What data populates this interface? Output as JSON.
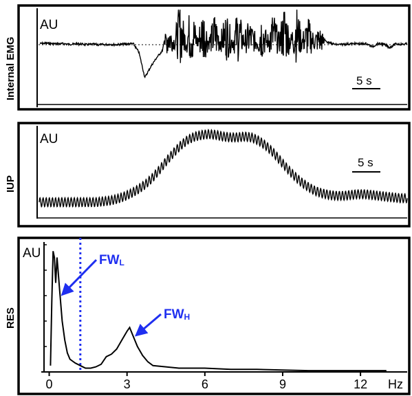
{
  "chart_data": [
    {
      "type": "line",
      "ylabel": "Internal EMG",
      "unit_label": "AU",
      "scale_bar": "5 s",
      "baseline": "dotted",
      "series": [
        {
          "values": [
            0.05,
            0.06,
            0.05,
            0.04,
            0.05,
            0.03,
            0.04,
            0.04,
            0.02,
            0.03,
            0.02,
            0.02,
            0.03,
            0.02,
            0.03,
            0.04,
            0.05,
            -0.2,
            -0.9,
            -0.6,
            -0.35,
            -0.15,
            0.6,
            0.15,
            0.95,
            0.25,
            0.95,
            0.2,
            0.85,
            0.2,
            0.7,
            0.25,
            0.75,
            0.2,
            0.8,
            0.25,
            0.55,
            0.25,
            0.75,
            0.2,
            0.75,
            0.25,
            0.95,
            0.2,
            0.85,
            0.25,
            0.6,
            0.25,
            0.4,
            0.12,
            0.05,
            0.02,
            0.03,
            0.04,
            0.05,
            0.04,
            0.05,
            -0.04,
            0.05,
            0.03,
            -0.06,
            0.04,
            0.03,
            0.04
          ]
        }
      ]
    },
    {
      "type": "line",
      "ylabel": "IUP",
      "unit_label": "AU",
      "scale_bar": "5 s",
      "series": [
        {
          "values": [
            0.1,
            0.1,
            0.1,
            0.1,
            0.1,
            0.1,
            0.1,
            0.1,
            0.1,
            0.11,
            0.12,
            0.14,
            0.17,
            0.21,
            0.26,
            0.32,
            0.4,
            0.5,
            0.61,
            0.71,
            0.8,
            0.87,
            0.91,
            0.93,
            0.94,
            0.93,
            0.91,
            0.9,
            0.9,
            0.91,
            0.9,
            0.86,
            0.8,
            0.72,
            0.62,
            0.52,
            0.43,
            0.35,
            0.29,
            0.24,
            0.21,
            0.19,
            0.18,
            0.18,
            0.19,
            0.2,
            0.2,
            0.19,
            0.18,
            0.17,
            0.16,
            0.15,
            0.15
          ]
        }
      ]
    },
    {
      "type": "line",
      "ylabel": "RES",
      "unit_label": "AU",
      "x_unit": "Hz",
      "xticks": [
        "0",
        "3",
        "6",
        "9",
        "12"
      ],
      "xlim": [
        -0.2,
        13.8
      ],
      "ylim": [
        0,
        1
      ],
      "x": [
        0.05,
        0.1,
        0.15,
        0.2,
        0.25,
        0.3,
        0.35,
        0.4,
        0.5,
        0.6,
        0.7,
        0.8,
        1.0,
        1.2,
        1.4,
        1.6,
        1.8,
        2.0,
        2.2,
        2.4,
        2.6,
        2.8,
        3.0,
        3.1,
        3.2,
        3.4,
        3.6,
        3.8,
        4.0,
        4.5,
        5,
        6,
        7,
        8,
        9,
        10,
        11,
        12,
        13
      ],
      "series": [
        {
          "values": [
            0.05,
            0.55,
            0.95,
            0.9,
            0.7,
            0.9,
            0.78,
            0.65,
            0.4,
            0.25,
            0.15,
            0.1,
            0.07,
            0.05,
            0.03,
            0.03,
            0.04,
            0.06,
            0.12,
            0.14,
            0.18,
            0.25,
            0.32,
            0.35,
            0.3,
            0.2,
            0.13,
            0.08,
            0.05,
            0.04,
            0.03,
            0.03,
            0.02,
            0.02,
            0.015,
            0.01,
            0.01,
            0.01,
            0.01
          ]
        }
      ],
      "vline": {
        "x": 1.2,
        "style": "dotted",
        "color": "#1f2ff0"
      },
      "annotations": [
        {
          "base": "FW",
          "sub": "L",
          "target_x": 0.35,
          "target_y": 0.62,
          "color": "#1f2ff0"
        },
        {
          "base": "FW",
          "sub": "H",
          "target_x": 3.2,
          "target_y": 0.3,
          "color": "#1f2ff0"
        }
      ]
    }
  ]
}
